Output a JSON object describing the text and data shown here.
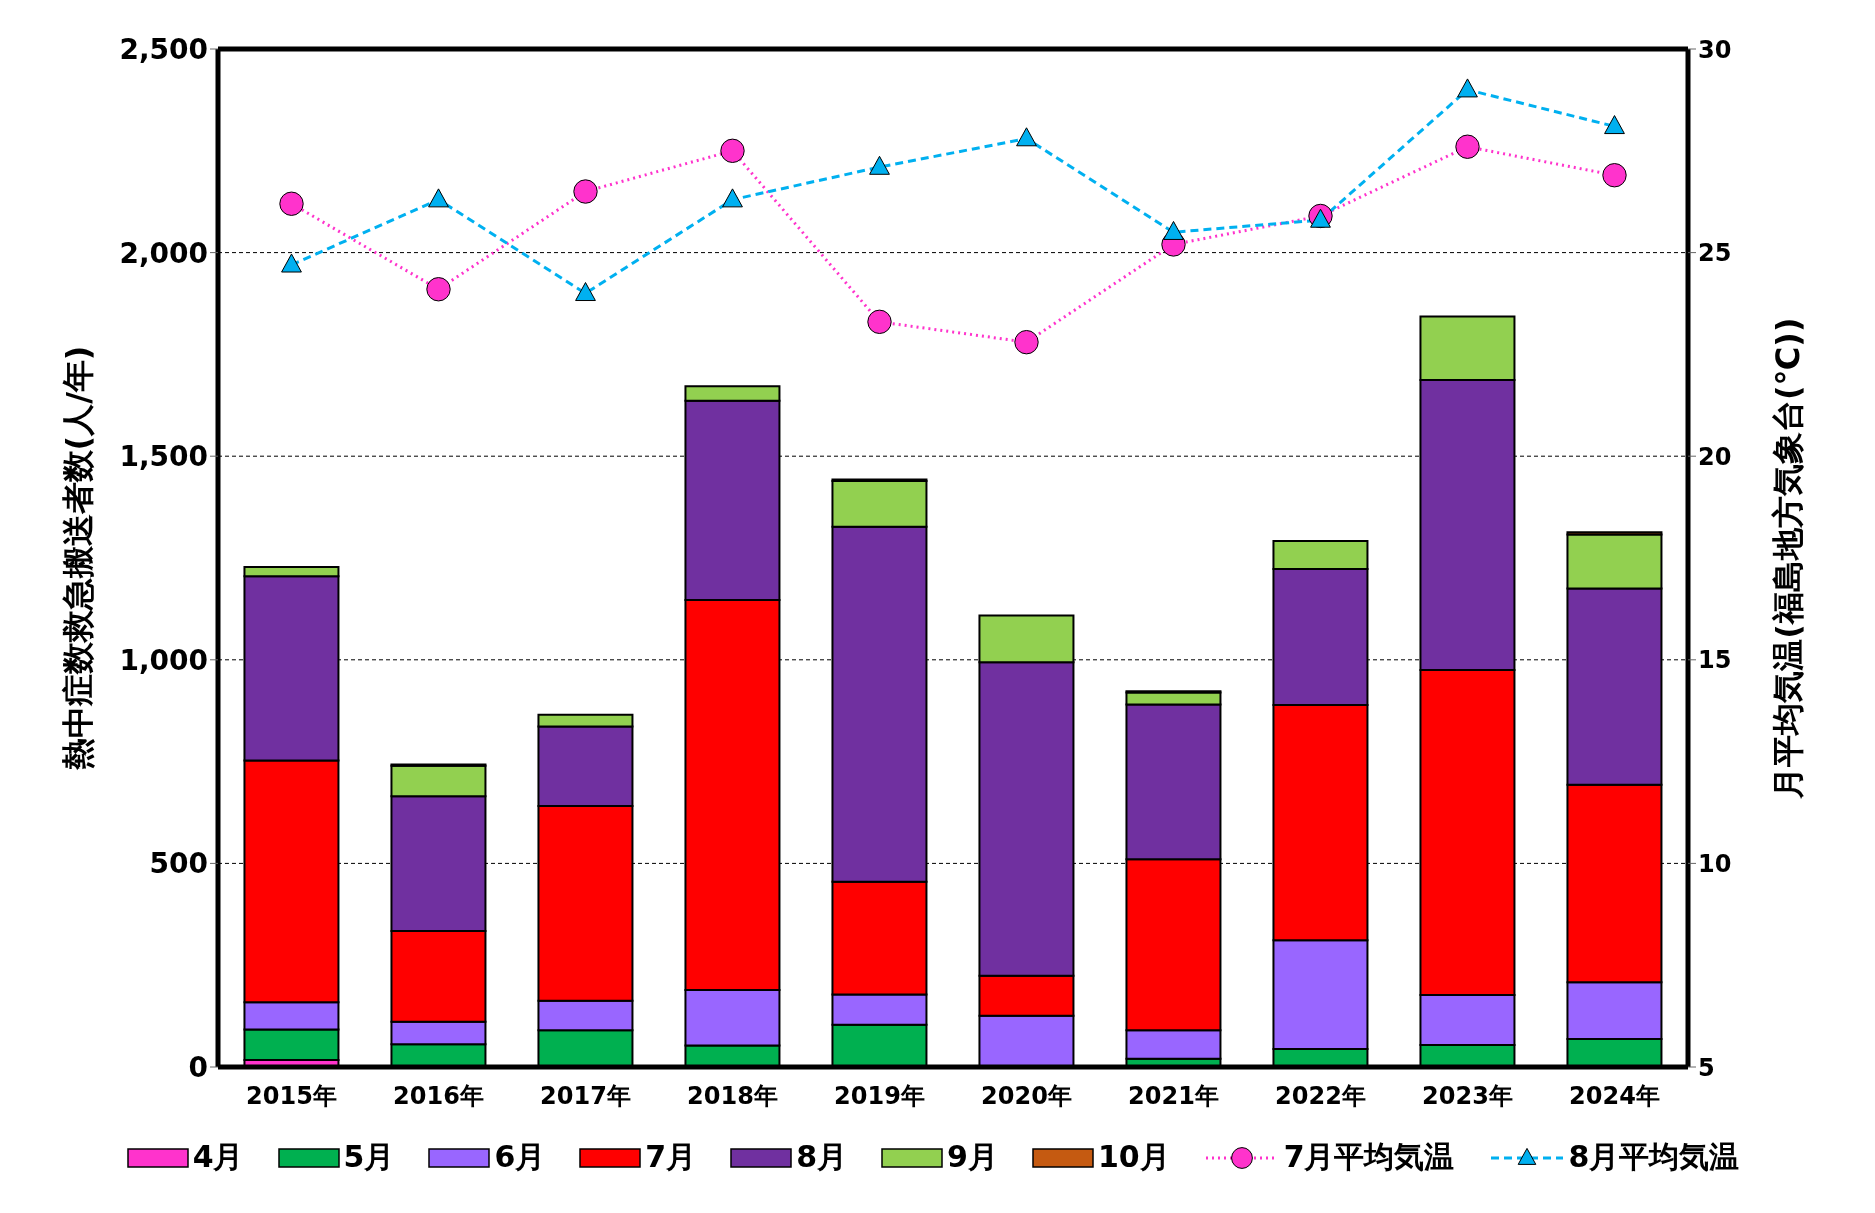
{
  "chart_data": {
    "type": "bar",
    "stacked": true,
    "categories": [
      "2015年",
      "2016年",
      "2017年",
      "2018年",
      "2019年",
      "2020年",
      "2021年",
      "2022年",
      "2023年",
      "2024年"
    ],
    "ylabel": "熱中症数救急搬送者数(人/年)",
    "y2label": "月平均気温(福島地方気象台(℃))",
    "ylim": [
      0,
      2500
    ],
    "yticks": [
      0,
      500,
      {
        "value": 1000,
        "label": "1,000"
      },
      {
        "value": 1500,
        "label": "1,500"
      },
      {
        "value": 2000,
        "label": "2,000"
      },
      {
        "value": 2500,
        "label": "2,500"
      }
    ],
    "y2lim": [
      5,
      30
    ],
    "y2ticks": [
      5,
      10,
      15,
      20,
      25,
      30
    ],
    "grid": "y",
    "legend": "bottom",
    "series": [
      {
        "name": "4月",
        "color": "#ff33cc",
        "values": [
          17,
          0,
          0,
          0,
          0,
          0,
          0,
          0,
          0,
          0
        ]
      },
      {
        "name": "5月",
        "color": "#00b050",
        "values": [
          75,
          56,
          90,
          53,
          104,
          0,
          20,
          44,
          54,
          69
        ]
      },
      {
        "name": "6月",
        "color": "#9966ff",
        "values": [
          67,
          55,
          73,
          136,
          74,
          126,
          70,
          267,
          123,
          139
        ]
      },
      {
        "name": "7月",
        "color": "#ff0000",
        "values": [
          594,
          223,
          478,
          958,
          277,
          98,
          420,
          578,
          798,
          485
        ]
      },
      {
        "name": "8月",
        "color": "#7030a0",
        "values": [
          452,
          331,
          195,
          489,
          872,
          770,
          380,
          334,
          712,
          482
        ]
      },
      {
        "name": "9月",
        "color": "#92d050",
        "values": [
          23,
          75,
          29,
          36,
          112,
          115,
          30,
          69,
          156,
          133
        ]
      },
      {
        "name": "10月",
        "color": "#c55a11",
        "values": [
          0,
          3,
          0,
          0,
          4,
          0,
          3,
          0,
          0,
          5
        ]
      },
      {
        "name": "7月平均気温",
        "type": "line",
        "axis": "y2",
        "color": "#ff33cc",
        "marker": "circle",
        "line_style": "dotted",
        "values": [
          26.2,
          24.1,
          26.5,
          27.5,
          23.3,
          22.8,
          25.2,
          25.9,
          27.6,
          26.9
        ]
      },
      {
        "name": "8月平均気温",
        "type": "line",
        "axis": "y2",
        "color": "#00b0f0",
        "marker": "triangle",
        "line_style": "dashed",
        "values": [
          24.7,
          26.3,
          24.0,
          26.3,
          27.1,
          27.8,
          25.5,
          25.8,
          29.0,
          28.1
        ]
      }
    ]
  }
}
